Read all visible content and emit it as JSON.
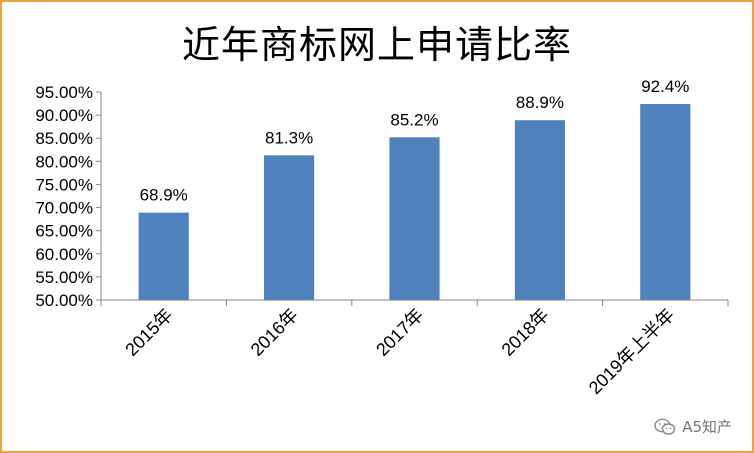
{
  "chart_data": {
    "type": "bar",
    "title": "近年商标网上申请比率",
    "categories": [
      "2015年",
      "2016年",
      "2017年",
      "2018年",
      "2019年上半年"
    ],
    "values": [
      68.9,
      81.3,
      85.2,
      88.9,
      92.4
    ],
    "data_labels": [
      "68.9%",
      "81.3%",
      "85.2%",
      "88.9%",
      "92.4%"
    ],
    "ylim": [
      50,
      95
    ],
    "yticks": [
      "50.00%",
      "55.00%",
      "60.00%",
      "65.00%",
      "70.00%",
      "75.00%",
      "80.00%",
      "85.00%",
      "90.00%",
      "95.00%"
    ],
    "grid": false,
    "legend": "none",
    "bar_color": "#4f81bd"
  },
  "watermark": {
    "text": "A5知产",
    "icon": "wechat-icon"
  },
  "colors": {
    "frame_border": "#f0a33a"
  }
}
